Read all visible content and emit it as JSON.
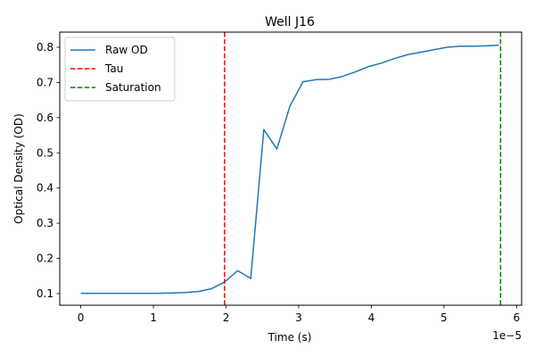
{
  "chart_data": {
    "type": "line",
    "title": "Well J16",
    "xlabel": "Time (s)",
    "ylabel": "Optical Density (OD)",
    "x_offset_label": "1e−5",
    "xlim": [
      -0.29,
      6.07
    ],
    "ylim": [
      0.067,
      0.843
    ],
    "x_ticks": [
      0,
      1,
      2,
      3,
      4,
      5,
      6
    ],
    "x_tick_labels": [
      "0",
      "1",
      "2",
      "3",
      "4",
      "5",
      "6"
    ],
    "y_ticks": [
      0.1,
      0.2,
      0.3,
      0.4,
      0.5,
      0.6,
      0.7,
      0.8
    ],
    "y_tick_labels": [
      "0.1",
      "0.2",
      "0.3",
      "0.4",
      "0.5",
      "0.6",
      "0.7",
      "0.8"
    ],
    "grid": false,
    "legend_position": "top-left",
    "series": [
      {
        "name": "Raw OD",
        "color": "#1f77b4",
        "style": "solid",
        "x": [
          0,
          0.18,
          0.36,
          0.54,
          0.72,
          0.9,
          1.08,
          1.26,
          1.44,
          1.62,
          1.8,
          1.98,
          2.16,
          2.34,
          2.52,
          2.7,
          2.88,
          3.06,
          3.24,
          3.42,
          3.6,
          3.78,
          3.96,
          4.14,
          4.32,
          4.5,
          4.68,
          4.86,
          5.04,
          5.22,
          5.4,
          5.58,
          5.76
        ],
        "y": [
          0.101,
          0.101,
          0.101,
          0.101,
          0.101,
          0.101,
          0.101,
          0.102,
          0.103,
          0.106,
          0.114,
          0.133,
          0.165,
          0.143,
          0.566,
          0.511,
          0.633,
          0.702,
          0.708,
          0.709,
          0.717,
          0.73,
          0.745,
          0.755,
          0.768,
          0.779,
          0.786,
          0.793,
          0.8,
          0.803,
          0.803,
          0.804,
          0.806
        ]
      }
    ],
    "vlines": [
      {
        "name": "Tau",
        "x": 1.98,
        "color": "#ff0000",
        "style": "dashed"
      },
      {
        "name": "Saturation",
        "x": 5.78,
        "color": "#008000",
        "style": "dashed"
      }
    ]
  }
}
